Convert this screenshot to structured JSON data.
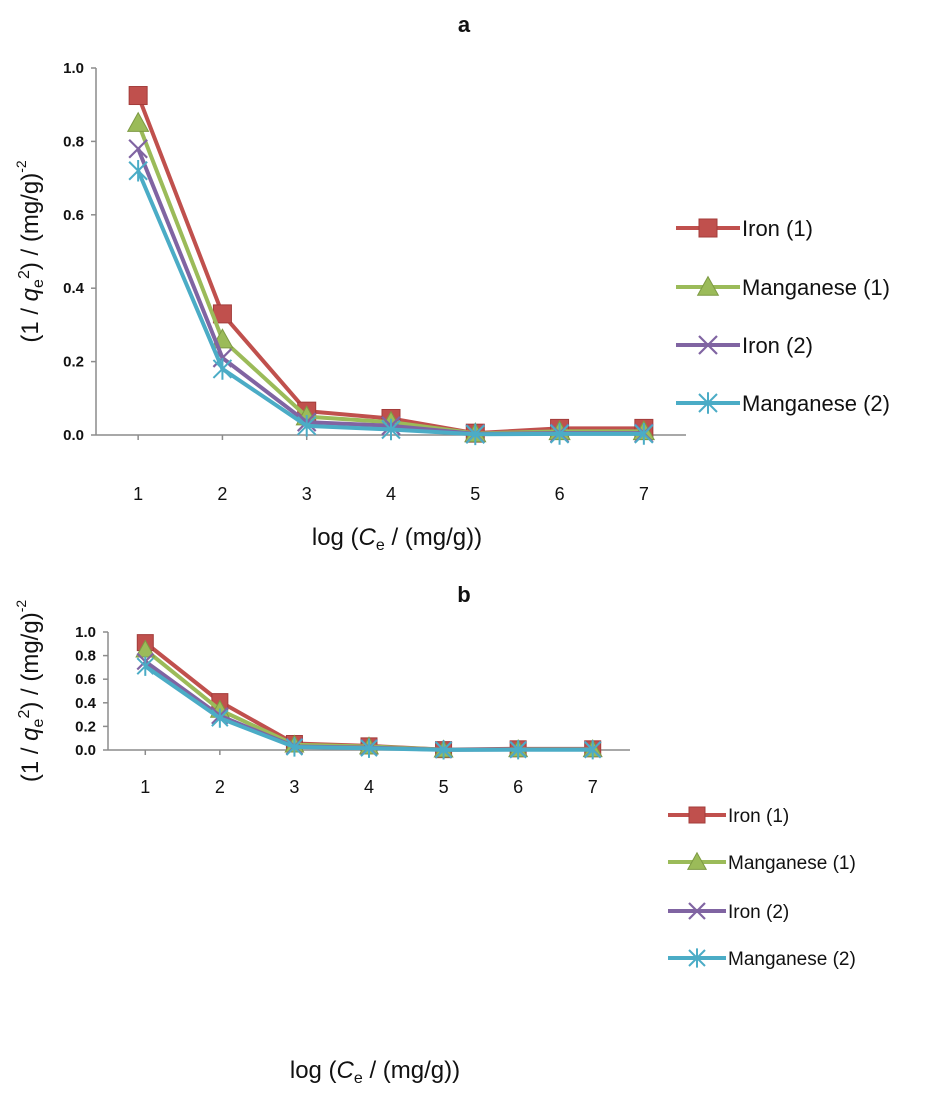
{
  "chart_data": [
    {
      "panel": "a",
      "type": "line",
      "x": [
        1,
        2,
        3,
        4,
        5,
        6,
        7
      ],
      "ylim": [
        0,
        1.0
      ],
      "yticks": [
        "0.0",
        "0.2",
        "0.4",
        "0.6",
        "0.8",
        "1.0"
      ],
      "xticks": [
        "1",
        "2",
        "3",
        "4",
        "5",
        "6",
        "7"
      ],
      "xlabel": {
        "pre": "log (",
        "italic": "C",
        "sub": "e",
        "post": " / (mg/g))"
      },
      "ylabel": {
        "pre": "(1 / ",
        "italic": "q",
        "sub": "e",
        "sup": "2",
        "mid": ") / (mg/g)",
        "sup2": "-2"
      },
      "legend_position": "right",
      "grid": false,
      "series": [
        {
          "name": "Iron (1)",
          "color": "#c0504d",
          "marker": "square",
          "values": [
            0.925,
            0.33,
            0.065,
            0.045,
            0.005,
            0.018,
            0.018
          ]
        },
        {
          "name": "Manganese (1)",
          "color": "#9bbb59",
          "marker": "triangle",
          "values": [
            0.85,
            0.26,
            0.05,
            0.035,
            0.004,
            0.01,
            0.01
          ]
        },
        {
          "name": "Iron (2)",
          "color": "#8064a2",
          "marker": "x",
          "values": [
            0.78,
            0.21,
            0.035,
            0.025,
            0.003,
            0.005,
            0.005
          ]
        },
        {
          "name": "Manganese (2)",
          "color": "#4bacc6",
          "marker": "star",
          "values": [
            0.72,
            0.18,
            0.025,
            0.015,
            0.002,
            0.003,
            0.003
          ]
        }
      ]
    },
    {
      "panel": "b",
      "type": "line",
      "x": [
        1,
        2,
        3,
        4,
        5,
        6,
        7
      ],
      "ylim": [
        0,
        1.0
      ],
      "yticks": [
        "0.0",
        "0.2",
        "0.4",
        "0.6",
        "0.8",
        "1.0"
      ],
      "xticks": [
        "1",
        "2",
        "3",
        "4",
        "5",
        "6",
        "7"
      ],
      "xlabel": {
        "pre": "log (",
        "italic": "C",
        "sub": "e",
        "post": " / (mg/g))"
      },
      "ylabel": {
        "pre": "(1 / ",
        "italic": "q",
        "sub": "e",
        "sup": "2",
        "mid": ") / (mg/g)",
        "sup2": "-2"
      },
      "legend_position": "right",
      "grid": false,
      "series": [
        {
          "name": "Iron (1)",
          "color": "#c0504d",
          "marker": "square",
          "values": [
            0.91,
            0.41,
            0.055,
            0.035,
            0.003,
            0.01,
            0.01
          ]
        },
        {
          "name": "Manganese (1)",
          "color": "#9bbb59",
          "marker": "triangle",
          "values": [
            0.85,
            0.34,
            0.045,
            0.03,
            0.003,
            0.006,
            0.006
          ]
        },
        {
          "name": "Iron (2)",
          "color": "#8064a2",
          "marker": "x",
          "values": [
            0.75,
            0.29,
            0.03,
            0.02,
            0.002,
            0.004,
            0.004
          ]
        },
        {
          "name": "Manganese (2)",
          "color": "#4bacc6",
          "marker": "star",
          "values": [
            0.71,
            0.27,
            0.025,
            0.015,
            0.001,
            0.002,
            0.002
          ]
        }
      ]
    }
  ]
}
